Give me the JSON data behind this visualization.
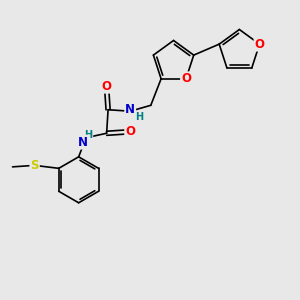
{
  "bg_color": "#e8e8e8",
  "bond_color": "#000000",
  "bond_width": 1.2,
  "atom_colors": {
    "O": "#ff0000",
    "N": "#0000cc",
    "S": "#cccc00",
    "C": "#000000",
    "H": "#008080"
  },
  "font_size": 7.5,
  "fig_size": [
    3.0,
    3.0
  ],
  "dpi": 100
}
